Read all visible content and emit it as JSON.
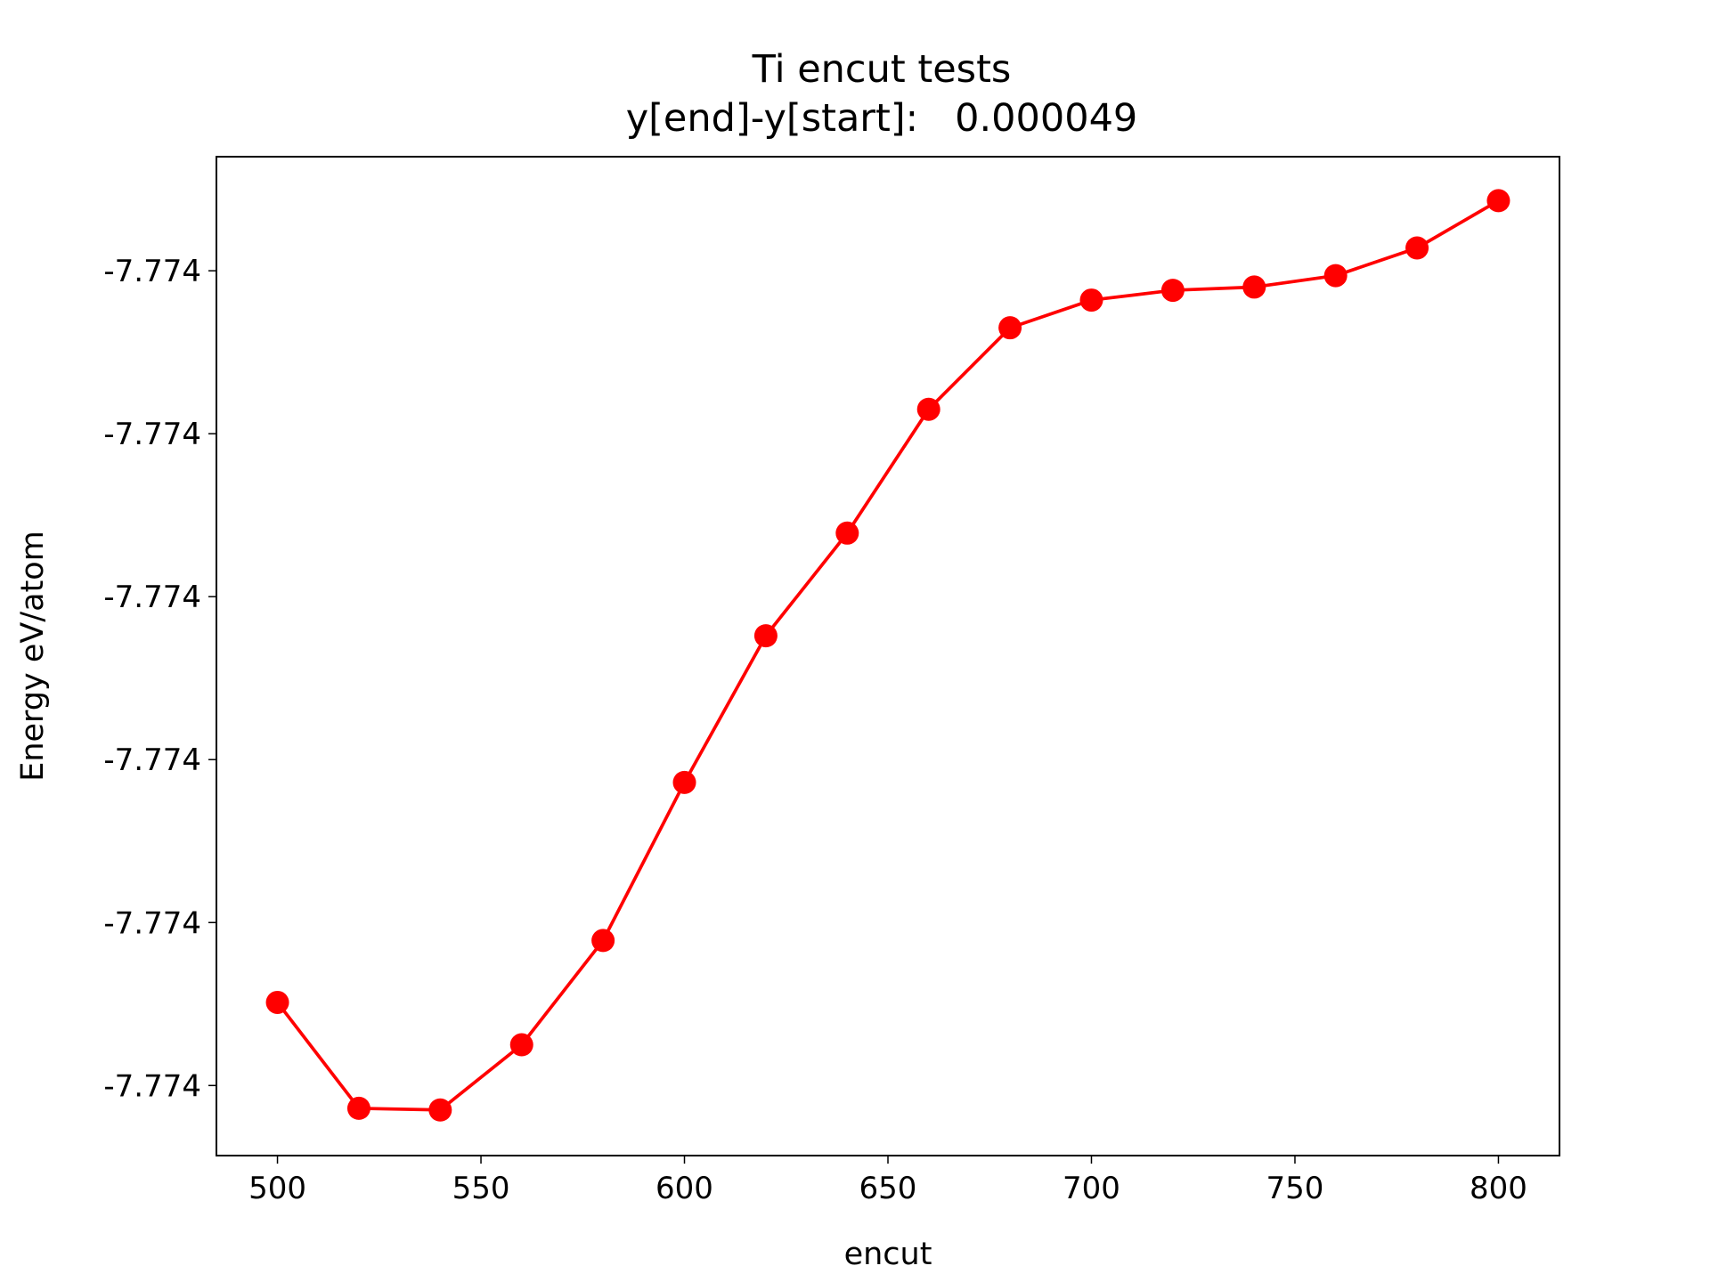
{
  "chart_data": {
    "type": "line",
    "title": "Ti encut tests",
    "subtitle": "y[end]-y[start]:   0.000049",
    "xlabel": "encut",
    "ylabel": "Energy eV/atom",
    "x": [
      500,
      520,
      540,
      560,
      580,
      600,
      620,
      640,
      660,
      680,
      700,
      720,
      740,
      760,
      780,
      800
    ],
    "series": [
      {
        "name": "Ti",
        "color": "#ff0000",
        "values": [
          -7.7740449,
          -7.7740514,
          -7.7740515,
          -7.7740475,
          -7.7740411,
          -7.7740314,
          -7.7740224,
          -7.7740161,
          -7.7740085,
          -7.7740035,
          -7.7740018,
          -7.7740012,
          -7.774001,
          -7.7740003,
          -7.7739986,
          -7.7739957
        ]
      }
    ],
    "xlim": [
      485,
      815
    ],
    "ylim": [
      -7.7740543,
      -7.773993
    ],
    "xticks": [
      500,
      550,
      600,
      650,
      700,
      750,
      800
    ],
    "yticks": [
      {
        "value": -7.77405,
        "label": "-7.774"
      },
      {
        "value": -7.77404,
        "label": "-7.774"
      },
      {
        "value": -7.77403,
        "label": "-7.774"
      },
      {
        "value": -7.77402,
        "label": "-7.774"
      },
      {
        "value": -7.77401,
        "label": "-7.774"
      },
      {
        "value": -7.774,
        "label": "-7.774"
      }
    ],
    "grid": false
  }
}
